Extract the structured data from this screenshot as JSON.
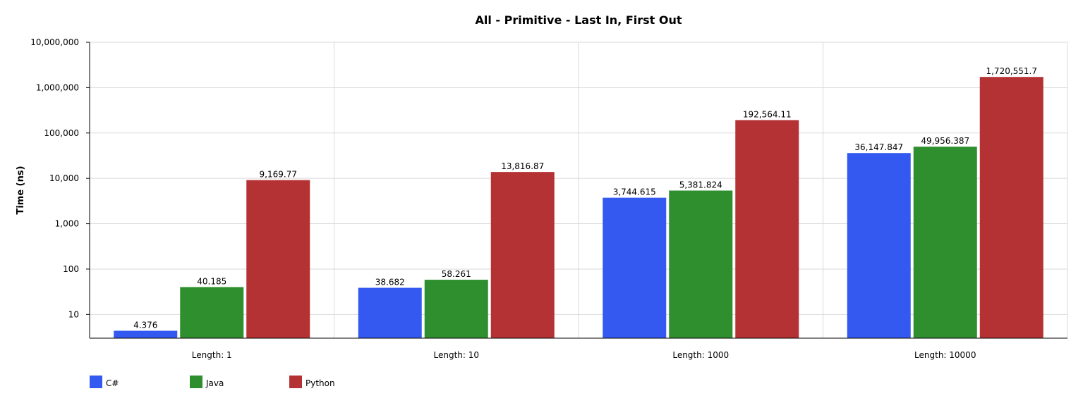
{
  "chart_data": {
    "type": "bar",
    "title": "All - Primitive - Last In, First Out",
    "ylabel": "Time (ns)",
    "xlabel": "",
    "yscale": "log",
    "ylim": [
      3,
      10000000
    ],
    "yticks": [
      "10",
      "100",
      "1,000",
      "10,000",
      "100,000",
      "1,000,000",
      "10,000,000"
    ],
    "grid": true,
    "legend_position": "bottom-left",
    "categories": [
      "Length: 1",
      "Length: 10",
      "Length: 1000",
      "Length: 10000"
    ],
    "series": [
      {
        "name": "C#",
        "color": "#3359f0",
        "values": [
          4.376,
          38.682,
          3744.615,
          36147.847
        ],
        "labels": [
          "4.376",
          "38.682",
          "3,744.615",
          "36,147.847"
        ]
      },
      {
        "name": "Java",
        "color": "#2f8f2f",
        "values": [
          40.185,
          58.261,
          5381.824,
          49956.387
        ],
        "labels": [
          "40.185",
          "58.261",
          "5,381.824",
          "49,956.387"
        ]
      },
      {
        "name": "Python",
        "color": "#b53234",
        "values": [
          9169.77,
          13816.87,
          192564.11,
          1720551.7
        ],
        "labels": [
          "9,169.77",
          "13,816.87",
          "192,564.11",
          "1,720,551.7"
        ]
      }
    ]
  }
}
